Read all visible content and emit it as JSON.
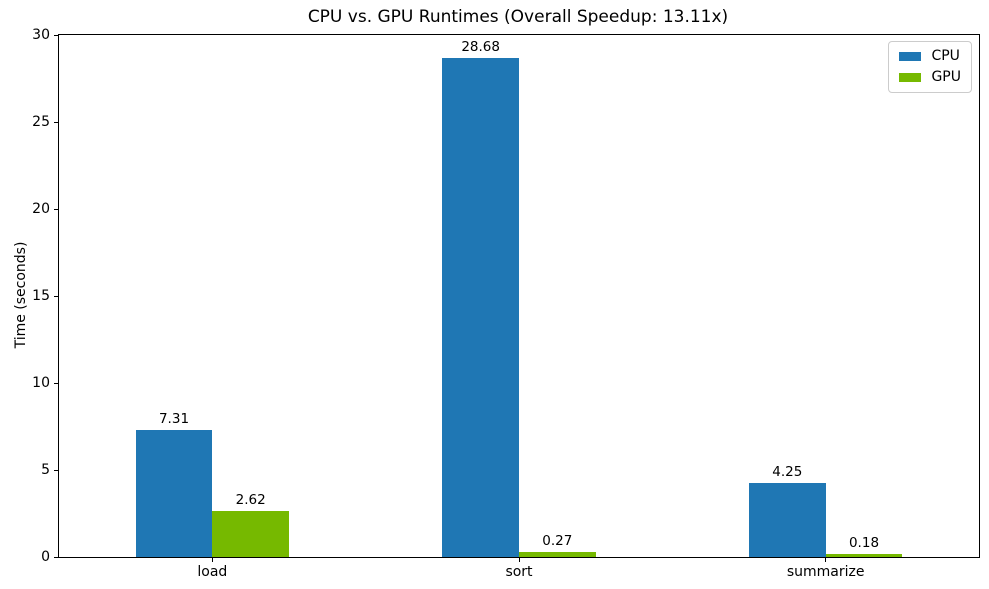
{
  "chart_data": {
    "type": "bar",
    "title": "CPU vs. GPU Runtimes (Overall Speedup: 13.11x)",
    "xlabel": "",
    "ylabel": "Time (seconds)",
    "categories": [
      "load",
      "sort",
      "summarize"
    ],
    "series": [
      {
        "name": "CPU",
        "color": "#1f77b4",
        "values": [
          7.31,
          28.68,
          4.25
        ]
      },
      {
        "name": "GPU",
        "color": "#76b900",
        "values": [
          2.62,
          0.27,
          0.18
        ]
      }
    ],
    "bar_value_labels": [
      [
        "7.31",
        "28.68",
        "4.25"
      ],
      [
        "2.62",
        "0.27",
        "0.18"
      ]
    ],
    "ylim": [
      0,
      30
    ],
    "yticks": [
      0,
      5,
      10,
      15,
      20,
      25,
      30
    ],
    "legend_position": "upper right",
    "grid": false
  }
}
